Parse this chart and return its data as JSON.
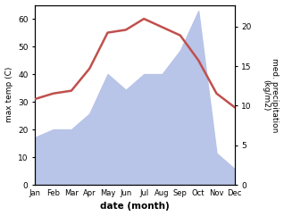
{
  "months": [
    "Jan",
    "Feb",
    "Mar",
    "Apr",
    "May",
    "Jun",
    "Jul",
    "Aug",
    "Sep",
    "Oct",
    "Nov",
    "Dec"
  ],
  "temp": [
    31,
    33,
    34,
    42,
    55,
    56,
    60,
    57,
    54,
    45,
    33,
    28
  ],
  "precip": [
    6,
    7,
    7,
    9,
    14,
    12,
    14,
    14,
    17,
    22,
    4,
    2
  ],
  "temp_color": "#c0504d",
  "precip_fill_color": "#b8c4e8",
  "temp_ylim": [
    0,
    65
  ],
  "precip_ylim": [
    0,
    22.75
  ],
  "temp_yticks": [
    0,
    10,
    20,
    30,
    40,
    50,
    60
  ],
  "precip_yticks": [
    0,
    5,
    10,
    15,
    20
  ],
  "ylabel_left": "max temp (C)",
  "ylabel_right": "med. precipitation\n(kg/m2)",
  "xlabel": "date (month)",
  "background_color": "#ffffff"
}
